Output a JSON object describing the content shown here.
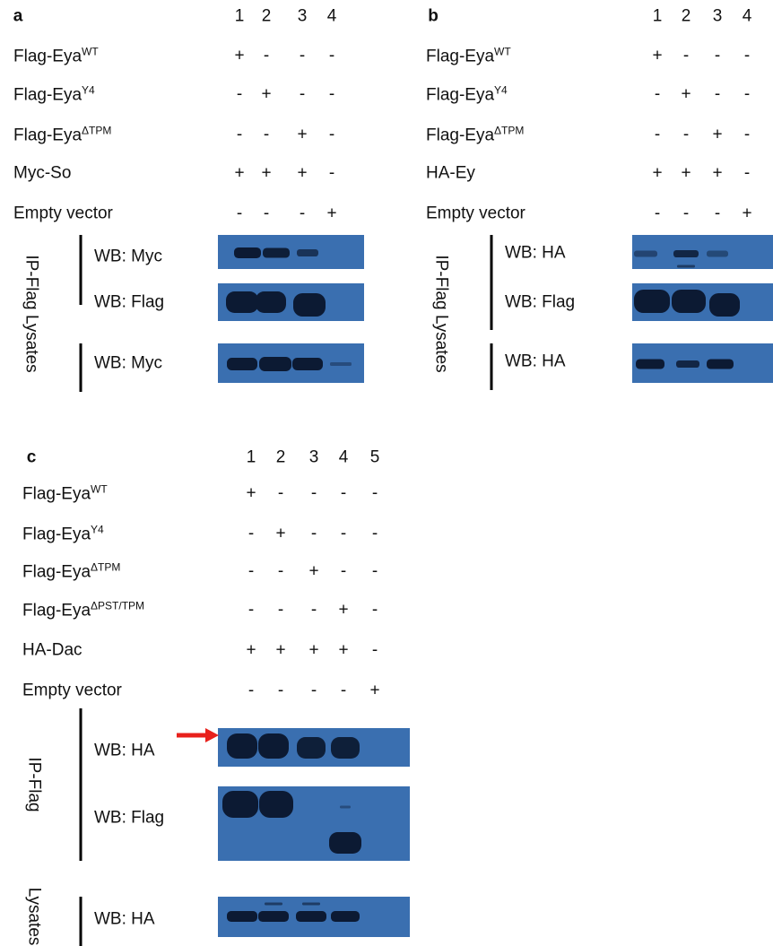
{
  "panels": [
    {
      "letter": "a",
      "lanes": [
        "1",
        "2",
        "3",
        "4"
      ],
      "rows": [
        {
          "label": "Flag-Eya",
          "sup": "WT",
          "signs": [
            "+",
            "-",
            "-",
            "-"
          ]
        },
        {
          "label": "Flag-Eya",
          "sup": "Y4",
          "signs": [
            "-",
            "+",
            "-",
            "-"
          ]
        },
        {
          "label": "Flag-Eya",
          "sup": "ΔTPM",
          "signs": [
            "-",
            "-",
            "+",
            "-"
          ]
        },
        {
          "label": "Myc-So",
          "signs": [
            "+",
            "+",
            "+",
            "-"
          ]
        },
        {
          "label": "Empty vector",
          "signs": [
            "-",
            "-",
            "-",
            "+"
          ]
        }
      ],
      "side_labels": [
        "IP-Flag Lysates"
      ],
      "blots": [
        "WB: Myc",
        "WB: Flag",
        "WB: Myc"
      ]
    },
    {
      "letter": "b",
      "lanes": [
        "1",
        "2",
        "3",
        "4"
      ],
      "rows": [
        {
          "label": "Flag-Eya",
          "sup": "WT",
          "signs": [
            "+",
            "-",
            "-",
            "-"
          ]
        },
        {
          "label": "Flag-Eya",
          "sup": "Y4",
          "signs": [
            "-",
            "+",
            "-",
            "-"
          ]
        },
        {
          "label": "Flag-Eya",
          "sup": "ΔTPM",
          "signs": [
            "-",
            "-",
            "+",
            "-"
          ]
        },
        {
          "label": "HA-Ey",
          "signs": [
            "+",
            "+",
            "+",
            "-"
          ]
        },
        {
          "label": "Empty vector",
          "signs": [
            "-",
            "-",
            "-",
            "+"
          ]
        }
      ],
      "side_labels": [
        "IP-Flag Lysates"
      ],
      "blots": [
        "WB: HA",
        "WB: Flag",
        "WB: HA"
      ]
    },
    {
      "letter": "c",
      "lanes": [
        "1",
        "2",
        "3",
        "4",
        "5"
      ],
      "rows": [
        {
          "label": "Flag-Eya",
          "sup": "WT",
          "signs": [
            "+",
            "-",
            "-",
            "-",
            "-"
          ]
        },
        {
          "label": "Flag-Eya",
          "sup": "Y4",
          "signs": [
            "-",
            "+",
            "-",
            "-",
            "-"
          ]
        },
        {
          "label": "Flag-Eya",
          "sup": "ΔTPM",
          "signs": [
            "-",
            "-",
            "+",
            "-",
            "-"
          ]
        },
        {
          "label": "Flag-Eya",
          "sup": "ΔPST/TPM",
          "signs": [
            "-",
            "-",
            "-",
            "+",
            "-"
          ]
        },
        {
          "label": "HA-Dac",
          "signs": [
            "+",
            "+",
            "+",
            "+",
            "-"
          ]
        },
        {
          "label": "Empty vector",
          "signs": [
            "-",
            "-",
            "-",
            "-",
            "+"
          ]
        }
      ],
      "side_labels": [
        "IP-Flag",
        "Lysates"
      ],
      "blots": [
        "WB: HA",
        "WB: Flag",
        "WB: HA"
      ]
    }
  ]
}
